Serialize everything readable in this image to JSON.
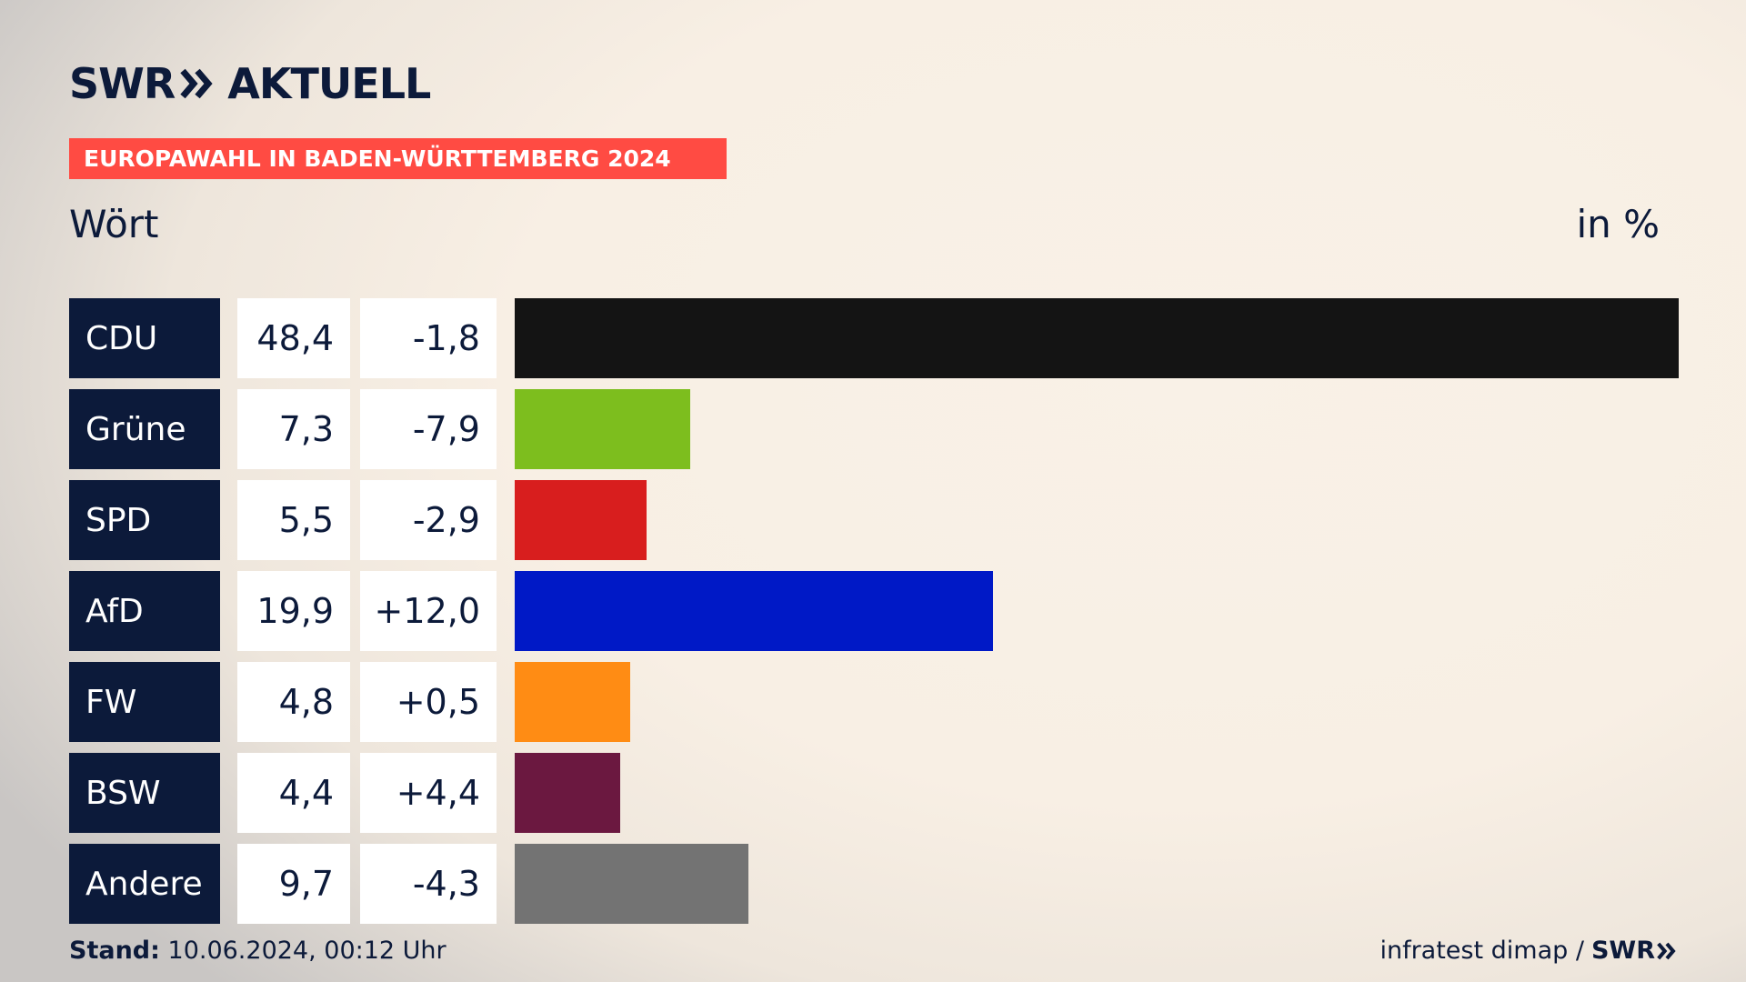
{
  "brand": {
    "swr": "SWR",
    "aktuell": "AKTUELL"
  },
  "headline": "EUROPAWAHL IN BADEN-WÜRTTEMBERG 2024",
  "region": "Wört",
  "unit": "in %",
  "colors": {
    "navy": "#0c1a3a",
    "accent_red": "#ff4b43"
  },
  "chart_data": {
    "type": "bar",
    "orientation": "horizontal",
    "categories": [
      "CDU",
      "Grüne",
      "SPD",
      "AfD",
      "FW",
      "BSW",
      "Andere"
    ],
    "values": [
      48.4,
      7.3,
      5.5,
      19.9,
      4.8,
      4.4,
      9.7
    ],
    "value_labels": [
      "48,4",
      "7,3",
      "5,5",
      "19,9",
      "4,8",
      "4,4",
      "9,7"
    ],
    "changes": [
      -1.8,
      -7.9,
      -2.9,
      12.0,
      0.5,
      4.4,
      -4.3
    ],
    "change_labels": [
      "-1,8",
      "-7,9",
      "-2,9",
      "+12,0",
      "+0,5",
      "+4,4",
      "-4,3"
    ],
    "colors": [
      "#141414",
      "#7dbe1e",
      "#d81e1e",
      "#0019c6",
      "#ff8c14",
      "#6b1840",
      "#737373"
    ],
    "xlim": [
      0,
      48.4
    ],
    "grid": false,
    "legend": "none"
  },
  "footer": {
    "stand_label": "Stand:",
    "stand_value": "10.06.2024, 00:12 Uhr",
    "source": "infratest dimap /",
    "source_brand": "SWR"
  }
}
